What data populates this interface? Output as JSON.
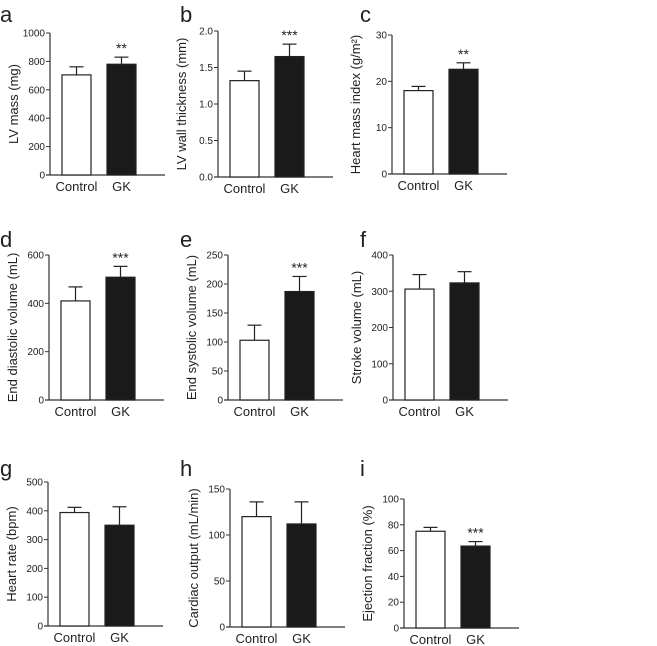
{
  "colors": {
    "control": "#ffffff",
    "gk": "#1a1a1a",
    "axis": "#333333"
  },
  "chart_data": [
    {
      "panel": "a",
      "type": "bar",
      "categories": [
        "Control",
        "GK"
      ],
      "values": [
        705,
        780
      ],
      "errors_upper": [
        762,
        830
      ],
      "significance": [
        "",
        "**"
      ],
      "ylabel": "LV mass (mg)",
      "ylim": [
        0,
        1000
      ],
      "yticks": [
        0,
        200,
        400,
        600,
        800,
        1000
      ],
      "yticklabels": [
        "0",
        "200",
        "400",
        "600",
        "800",
        "1000"
      ],
      "grid": false
    },
    {
      "panel": "b",
      "type": "bar",
      "categories": [
        "Control",
        "GK"
      ],
      "values": [
        1.32,
        1.65
      ],
      "errors_upper": [
        1.45,
        1.82
      ],
      "significance": [
        "",
        "***"
      ],
      "ylabel": "LV wall thickness (mm)",
      "ylim": [
        0,
        2.0
      ],
      "yticks": [
        0,
        0.5,
        1.0,
        1.5,
        2.0
      ],
      "yticklabels": [
        "0.0",
        "0.5",
        "1.0",
        "1.5",
        "2.0"
      ],
      "grid": false
    },
    {
      "panel": "c",
      "type": "bar",
      "categories": [
        "Control",
        "GK"
      ],
      "values": [
        18,
        22.6
      ],
      "errors_upper": [
        18.9,
        24
      ],
      "significance": [
        "",
        "**"
      ],
      "ylabel": "Heart mass index (g/m²)",
      "ylim": [
        0,
        30
      ],
      "yticks": [
        0,
        10,
        20,
        30
      ],
      "yticklabels": [
        "0",
        "10",
        "20",
        "30"
      ],
      "grid": false
    },
    {
      "panel": "d",
      "type": "bar",
      "categories": [
        "Control",
        "GK"
      ],
      "values": [
        410,
        508
      ],
      "errors_upper": [
        468,
        553
      ],
      "significance": [
        "",
        "***"
      ],
      "ylabel": "End diastolic volume (mL)",
      "ylim": [
        0,
        600
      ],
      "yticks": [
        0,
        200,
        400,
        600
      ],
      "yticklabels": [
        "0",
        "200",
        "400",
        "600"
      ],
      "grid": false
    },
    {
      "panel": "e",
      "type": "bar",
      "categories": [
        "Control",
        "GK"
      ],
      "values": [
        103,
        187
      ],
      "errors_upper": [
        129,
        213
      ],
      "significance": [
        "",
        "***"
      ],
      "ylabel": "End systolic volume (mL)",
      "ylim": [
        0,
        250
      ],
      "yticks": [
        0,
        50,
        100,
        150,
        200,
        250
      ],
      "yticklabels": [
        "0",
        "50",
        "100",
        "150",
        "200",
        "250"
      ],
      "grid": false
    },
    {
      "panel": "f",
      "type": "bar",
      "categories": [
        "Control",
        "GK"
      ],
      "values": [
        306,
        323
      ],
      "errors_upper": [
        346,
        354
      ],
      "significance": [
        "",
        ""
      ],
      "ylabel": "Stroke volume (mL)",
      "ylim": [
        0,
        400
      ],
      "yticks": [
        0,
        100,
        200,
        300,
        400
      ],
      "yticklabels": [
        "0",
        "100",
        "200",
        "300",
        "400"
      ],
      "grid": false
    },
    {
      "panel": "g",
      "type": "bar",
      "categories": [
        "Control",
        "GK"
      ],
      "values": [
        394,
        350
      ],
      "errors_upper": [
        412,
        414
      ],
      "significance": [
        "",
        ""
      ],
      "ylabel": "Heart rate (bpm)",
      "ylim": [
        0,
        500
      ],
      "yticks": [
        0,
        100,
        200,
        300,
        400,
        500
      ],
      "yticklabels": [
        "0",
        "100",
        "200",
        "300",
        "400",
        "500"
      ],
      "grid": false
    },
    {
      "panel": "h",
      "type": "bar",
      "categories": [
        "Control",
        "GK"
      ],
      "values": [
        120,
        112
      ],
      "errors_upper": [
        136,
        136
      ],
      "significance": [
        "",
        ""
      ],
      "ylabel": "Cardiac output (mL/min)",
      "ylim": [
        0,
        150
      ],
      "yticks": [
        0,
        50,
        100,
        150
      ],
      "yticklabels": [
        "0",
        "50",
        "100",
        "150"
      ],
      "grid": false
    },
    {
      "panel": "i",
      "type": "bar",
      "categories": [
        "Control",
        "GK"
      ],
      "values": [
        75,
        63.5
      ],
      "errors_upper": [
        78,
        67
      ],
      "significance": [
        "",
        "***"
      ],
      "ylabel": "Ejection fraction (%)",
      "ylim": [
        0,
        100
      ],
      "yticks": [
        0,
        20,
        40,
        60,
        80,
        100
      ],
      "yticklabels": [
        "0",
        "20",
        "40",
        "60",
        "80",
        "100"
      ],
      "grid": false
    }
  ]
}
